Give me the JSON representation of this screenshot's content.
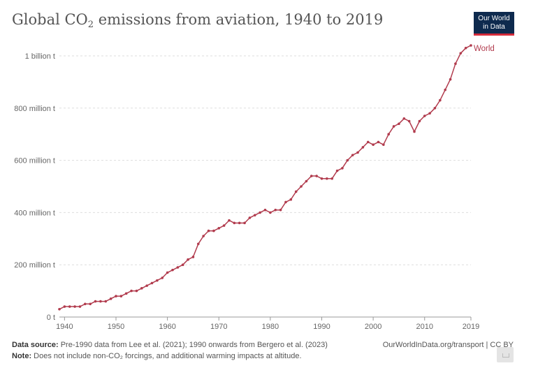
{
  "header": {
    "title_main": "Global CO",
    "title_sub": "2",
    "title_rest": " emissions from aviation, 1940 to 2019",
    "logo_line1": "Our World",
    "logo_line2": "in Data"
  },
  "footer": {
    "source_label": "Data source:",
    "source_text": " Pre-1990 data from Lee et al. (2021); 1990 onwards from Bergero et al. (2023)",
    "note_label": "Note:",
    "note_text": " Does not include non-CO₂ forcings, and additional warming impacts at altitude.",
    "credit": "OurWorldInData.org/transport | CC BY"
  },
  "colors": {
    "series": "#b13b4d",
    "grid": "#dddddd",
    "logo_bg": "#0e2a4e",
    "logo_accent": "#d42b3a"
  },
  "chart_data": {
    "type": "line",
    "title": "Global CO₂ emissions from aviation, 1940 to 2019",
    "xlabel": "",
    "ylabel": "",
    "xlim": [
      1939,
      2019
    ],
    "ylim": [
      0,
      1050
    ],
    "grid": "horizontal-dashed",
    "y_ticks": [
      {
        "value": 0,
        "label": "0 t"
      },
      {
        "value": 200,
        "label": "200 million t"
      },
      {
        "value": 400,
        "label": "400 million t"
      },
      {
        "value": 600,
        "label": "600 million t"
      },
      {
        "value": 800,
        "label": "800 million t"
      },
      {
        "value": 1000,
        "label": "1 billion t"
      }
    ],
    "x_ticks": [
      {
        "value": 1940,
        "label": "1940"
      },
      {
        "value": 1950,
        "label": "1950"
      },
      {
        "value": 1960,
        "label": "1960"
      },
      {
        "value": 1970,
        "label": "1970"
      },
      {
        "value": 1980,
        "label": "1980"
      },
      {
        "value": 1990,
        "label": "1990"
      },
      {
        "value": 2000,
        "label": "2000"
      },
      {
        "value": 2010,
        "label": "2010"
      },
      {
        "value": 2019,
        "label": "2019"
      }
    ],
    "series": [
      {
        "name": "World",
        "x": [
          1939,
          1940,
          1941,
          1942,
          1943,
          1944,
          1945,
          1946,
          1947,
          1948,
          1949,
          1950,
          1951,
          1952,
          1953,
          1954,
          1955,
          1956,
          1957,
          1958,
          1959,
          1960,
          1961,
          1962,
          1963,
          1964,
          1965,
          1966,
          1967,
          1968,
          1969,
          1970,
          1971,
          1972,
          1973,
          1974,
          1975,
          1976,
          1977,
          1978,
          1979,
          1980,
          1981,
          1982,
          1983,
          1984,
          1985,
          1986,
          1987,
          1988,
          1989,
          1990,
          1991,
          1992,
          1993,
          1994,
          1995,
          1996,
          1997,
          1998,
          1999,
          2000,
          2001,
          2002,
          2003,
          2004,
          2005,
          2006,
          2007,
          2008,
          2009,
          2010,
          2011,
          2012,
          2013,
          2014,
          2015,
          2016,
          2017,
          2018,
          2019
        ],
        "values": [
          30,
          40,
          40,
          40,
          40,
          50,
          50,
          60,
          60,
          60,
          70,
          80,
          80,
          90,
          100,
          100,
          110,
          120,
          130,
          140,
          150,
          170,
          180,
          190,
          200,
          220,
          230,
          280,
          310,
          330,
          330,
          340,
          350,
          370,
          360,
          360,
          360,
          380,
          390,
          400,
          410,
          400,
          410,
          410,
          440,
          450,
          480,
          500,
          520,
          540,
          540,
          530,
          530,
          530,
          560,
          570,
          600,
          620,
          630,
          650,
          670,
          660,
          670,
          660,
          700,
          730,
          740,
          760,
          750,
          710,
          750,
          770,
          780,
          800,
          830,
          870,
          910,
          970,
          1010,
          1030,
          1040
        ]
      }
    ]
  }
}
